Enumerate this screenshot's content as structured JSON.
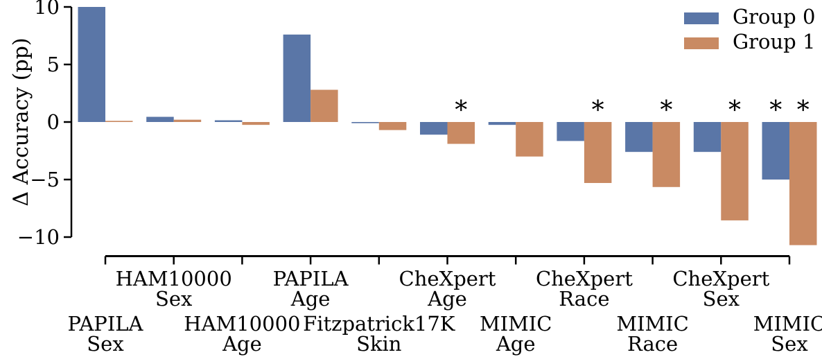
{
  "chart_data": {
    "type": "bar",
    "title": "",
    "ylabel": "Δ Accuracy (pp)",
    "xlabel": "",
    "ylim": [
      -10,
      10
    ],
    "yticks": [
      10,
      5,
      0,
      -5,
      -10
    ],
    "grid": false,
    "legend_position": "upper right",
    "sig_marker": "*",
    "colors": {
      "group0": "#5a76a7",
      "group1": "#c98a63",
      "axis": "#000000"
    },
    "categories": [
      {
        "label": "PAPILA Sex",
        "lines": [
          "PAPILA",
          "Sex"
        ]
      },
      {
        "label": "HAM10000 Sex",
        "lines": [
          "HAM10000",
          "Sex"
        ]
      },
      {
        "label": "HAM10000 Age",
        "lines": [
          "HAM10000",
          "Age"
        ]
      },
      {
        "label": "PAPILA Age",
        "lines": [
          "PAPILA",
          "Age"
        ]
      },
      {
        "label": "Fitzpatrick17K Skin",
        "lines": [
          "Fitzpatrick17K",
          "Skin"
        ]
      },
      {
        "label": "CheXpert Age",
        "lines": [
          "CheXpert",
          "Age"
        ]
      },
      {
        "label": "MIMIC Age",
        "lines": [
          "MIMIC",
          "Age"
        ]
      },
      {
        "label": "CheXpert Race",
        "lines": [
          "CheXpert",
          "Race"
        ]
      },
      {
        "label": "MIMIC Race",
        "lines": [
          "MIMIC",
          "Race"
        ]
      },
      {
        "label": "CheXpert Sex",
        "lines": [
          "CheXpert",
          "Sex"
        ]
      },
      {
        "label": "MIMIC Sex",
        "lines": [
          "MIMIC",
          "Sex"
        ]
      }
    ],
    "series": [
      {
        "name": "Group 0",
        "color": "#5a76a7",
        "values": [
          10.0,
          0.45,
          0.15,
          7.6,
          -0.1,
          -1.1,
          -0.25,
          -1.65,
          -2.6,
          -2.6,
          -5.0
        ],
        "significant": [
          false,
          false,
          false,
          false,
          false,
          false,
          false,
          false,
          false,
          false,
          true
        ]
      },
      {
        "name": "Group 1",
        "color": "#c98a63",
        "values": [
          0.1,
          0.2,
          -0.25,
          2.8,
          -0.7,
          -1.9,
          -3.0,
          -5.3,
          -5.65,
          -8.55,
          -10.7
        ],
        "significant": [
          false,
          false,
          false,
          false,
          false,
          true,
          false,
          true,
          true,
          true,
          true
        ]
      }
    ]
  }
}
